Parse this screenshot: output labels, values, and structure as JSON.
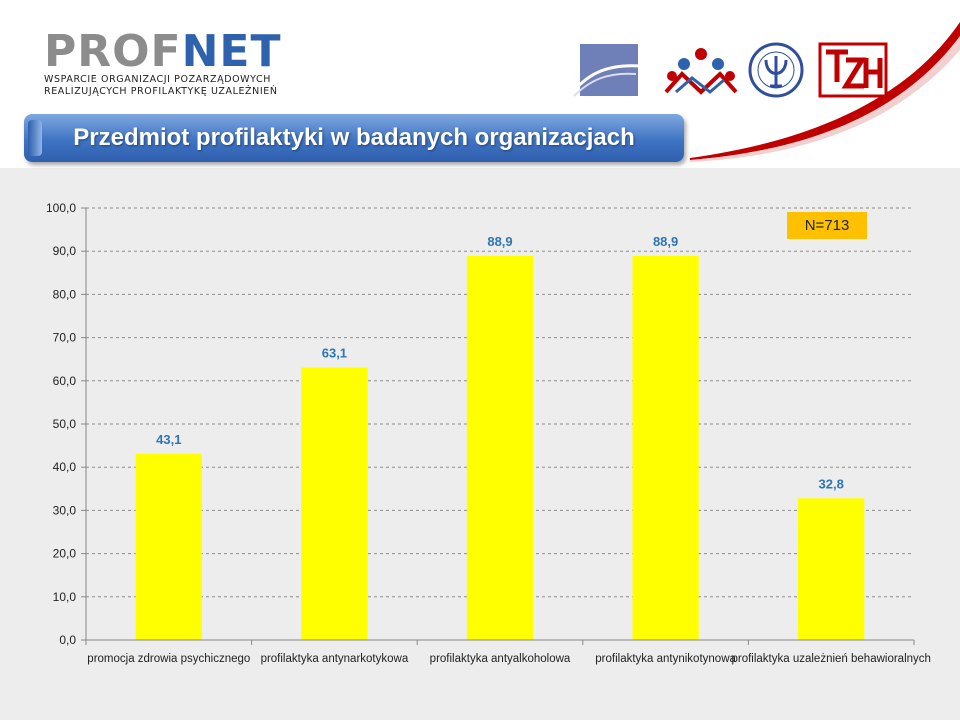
{
  "header": {
    "logo": {
      "part1": "PROF",
      "part2": "NET"
    },
    "tagline_line1": "WSPARCIE ORGANIZACJI POZARZĄDOWYCH",
    "tagline_line2": "REALIZUJĄCYCH PROFILAKTYKĘ UZALEŻNIEŃ",
    "partner_logos": [
      "wave-logo-icon",
      "people-logo-icon",
      "psychology-seal-icon",
      "tzn-logo-icon"
    ],
    "accent_color": "#c00000"
  },
  "title": "Przedmiot profilaktyki  w badanych organizacjach",
  "chart_data": {
    "type": "bar",
    "categories": [
      "promocja zdrowia psychicznego",
      "profilaktyka antynarkotykowa",
      "profilaktyka antyalkoholowa",
      "profilaktyka antynikotynowa",
      "profilaktyka uzależnień behawioralnych"
    ],
    "values": [
      43.1,
      63.1,
      88.9,
      88.9,
      32.8
    ],
    "value_labels": [
      "43,1",
      "63,1",
      "88,9",
      "88,9",
      "32,8"
    ],
    "ylim": [
      0,
      100
    ],
    "yticks": [
      "0,0",
      "10,0",
      "20,0",
      "30,0",
      "40,0",
      "50,0",
      "60,0",
      "70,0",
      "80,0",
      "90,0",
      "100,0"
    ],
    "grid": true,
    "bar_color": "#ffff00",
    "label_color": "#2e75b6",
    "annotation": "N=713",
    "annotation_color": "#ffc000"
  }
}
